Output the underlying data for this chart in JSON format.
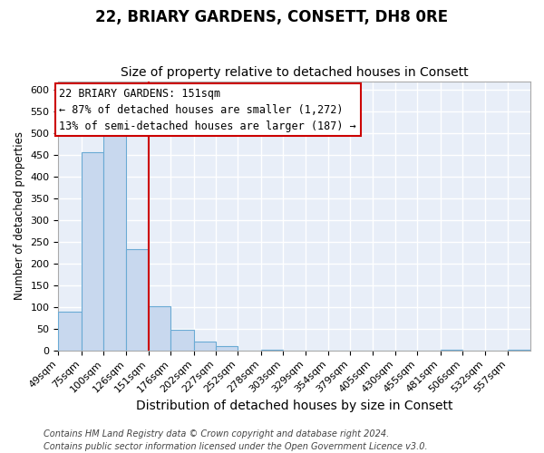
{
  "title": "22, BRIARY GARDENS, CONSETT, DH8 0RE",
  "subtitle": "Size of property relative to detached houses in Consett",
  "xlabel": "Distribution of detached houses by size in Consett",
  "ylabel": "Number of detached properties",
  "bin_edges": [
    49,
    75,
    100,
    126,
    151,
    176,
    202,
    227,
    252,
    278,
    303,
    329,
    354,
    379,
    405,
    430,
    455,
    481,
    506,
    532,
    557
  ],
  "bin_labels": [
    "49sqm",
    "75sqm",
    "100sqm",
    "126sqm",
    "151sqm",
    "176sqm",
    "202sqm",
    "227sqm",
    "252sqm",
    "278sqm",
    "303sqm",
    "329sqm",
    "354sqm",
    "379sqm",
    "405sqm",
    "430sqm",
    "455sqm",
    "481sqm",
    "506sqm",
    "532sqm",
    "557sqm"
  ],
  "counts": [
    90,
    457,
    500,
    233,
    102,
    47,
    20,
    10,
    0,
    2,
    0,
    0,
    0,
    0,
    0,
    0,
    0,
    2,
    0,
    0,
    2
  ],
  "bar_color": "#c8d8ee",
  "bar_edge_color": "#6aaad4",
  "vline_x": 151,
  "vline_color": "#cc0000",
  "annotation_line1": "22 BRIARY GARDENS: 151sqm",
  "annotation_line2": "← 87% of detached houses are smaller (1,272)",
  "annotation_line3": "13% of semi-detached houses are larger (187) →",
  "annotation_box_color": "#ffffff",
  "annotation_box_edge_color": "#cc0000",
  "ylim": [
    0,
    620
  ],
  "yticks": [
    0,
    50,
    100,
    150,
    200,
    250,
    300,
    350,
    400,
    450,
    500,
    550,
    600
  ],
  "plot_bg_color": "#e8eef8",
  "grid_color": "#ffffff",
  "fig_bg_color": "#ffffff",
  "footer_line1": "Contains HM Land Registry data © Crown copyright and database right 2024.",
  "footer_line2": "Contains public sector information licensed under the Open Government Licence v3.0.",
  "title_fontsize": 12,
  "subtitle_fontsize": 10,
  "xlabel_fontsize": 10,
  "ylabel_fontsize": 8.5,
  "tick_fontsize": 8,
  "footer_fontsize": 7,
  "annotation_fontsize": 8.5
}
